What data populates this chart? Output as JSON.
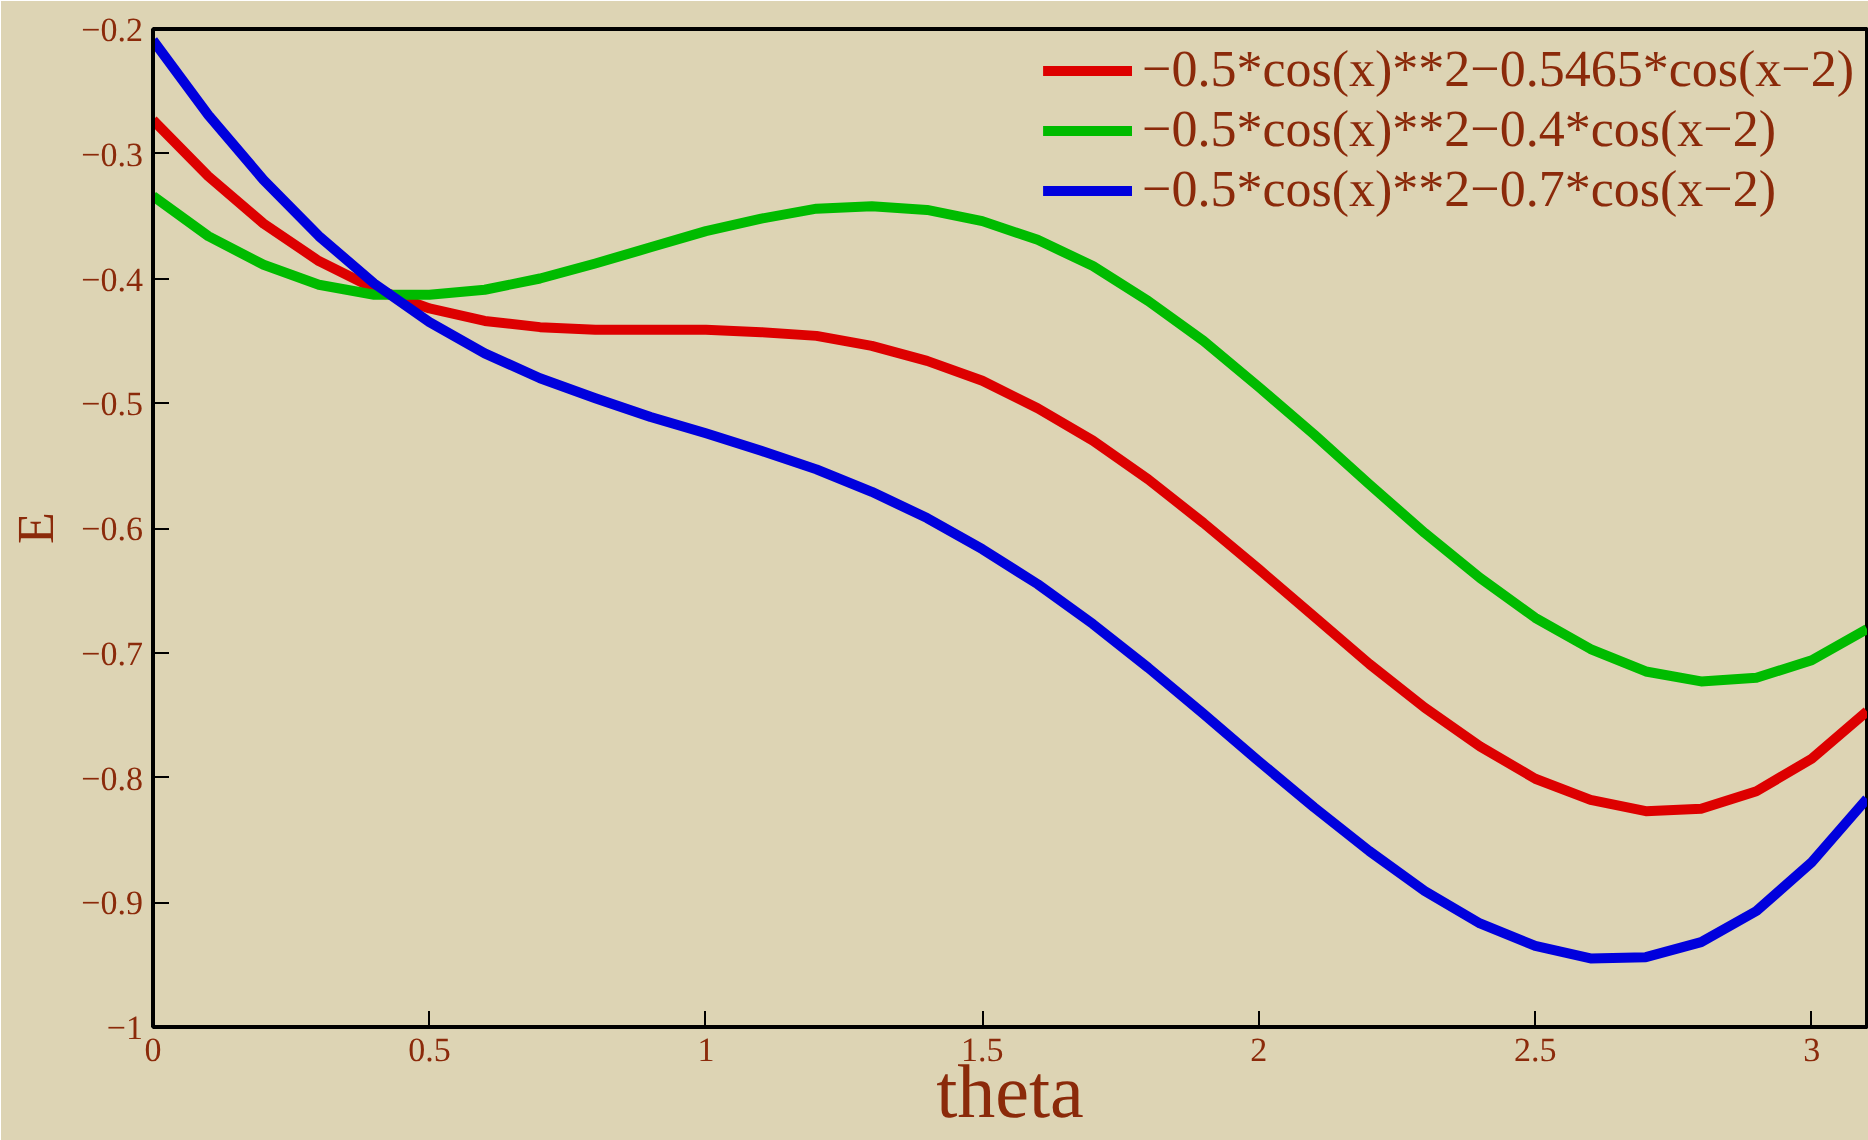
{
  "chart_data": {
    "type": "line",
    "xlabel": "theta",
    "ylabel": "E",
    "x": [
      0,
      0.1,
      0.2,
      0.3,
      0.4,
      0.5,
      0.6,
      0.7,
      0.8,
      0.9,
      1.0,
      1.1,
      1.2,
      1.3,
      1.4,
      1.5,
      1.6,
      1.7,
      1.8,
      1.9,
      2.0,
      2.1,
      2.2,
      2.3,
      2.4,
      2.5,
      2.6,
      2.7,
      2.8,
      2.9,
      3.0,
      3.1
    ],
    "series": [
      {
        "name": "−0.5*cos(x)**2−0.5465*cos(x−2)",
        "color": "#dd0000",
        "values": [
          -0.273,
          -0.318,
          -0.356,
          -0.386,
          -0.408,
          -0.424,
          -0.434,
          -0.439,
          -0.441,
          -0.441,
          -0.441,
          -0.443,
          -0.446,
          -0.454,
          -0.466,
          -0.482,
          -0.504,
          -0.53,
          -0.561,
          -0.596,
          -0.633,
          -0.671,
          -0.709,
          -0.744,
          -0.775,
          -0.801,
          -0.818,
          -0.827,
          -0.825,
          -0.811,
          -0.785,
          -0.747
        ]
      },
      {
        "name": "−0.5*cos(x)**2−0.4*cos(x−2)",
        "color": "#00bb00",
        "values": [
          -0.334,
          -0.366,
          -0.389,
          -0.405,
          -0.413,
          -0.413,
          -0.409,
          -0.4,
          -0.388,
          -0.375,
          -0.362,
          -0.352,
          -0.344,
          -0.342,
          -0.345,
          -0.354,
          -0.369,
          -0.39,
          -0.418,
          -0.45,
          -0.487,
          -0.525,
          -0.565,
          -0.604,
          -0.64,
          -0.672,
          -0.697,
          -0.715,
          -0.723,
          -0.72,
          -0.706,
          -0.681
        ]
      },
      {
        "name": "−0.5*cos(x)**2−0.7*cos(x−2)",
        "color": "#0000dd",
        "values": [
          -0.209,
          -0.269,
          -0.321,
          -0.366,
          -0.404,
          -0.435,
          -0.46,
          -0.48,
          -0.496,
          -0.511,
          -0.524,
          -0.538,
          -0.553,
          -0.571,
          -0.592,
          -0.617,
          -0.645,
          -0.677,
          -0.712,
          -0.749,
          -0.787,
          -0.824,
          -0.859,
          -0.891,
          -0.917,
          -0.935,
          -0.945,
          -0.944,
          -0.932,
          -0.907,
          -0.868,
          -0.817
        ]
      }
    ],
    "xlim": [
      0,
      3.1
    ],
    "ylim": [
      -1,
      -0.2
    ],
    "xticks": [
      0,
      0.5,
      1,
      1.5,
      2,
      2.5,
      3
    ],
    "yticks": [
      {
        "value": -1,
        "label": "−1"
      },
      {
        "value": -0.9,
        "label": "−0.9"
      },
      {
        "value": -0.8,
        "label": "−0.8"
      },
      {
        "value": -0.7,
        "label": "−0.7"
      },
      {
        "value": -0.6,
        "label": "−0.6"
      },
      {
        "value": -0.5,
        "label": "−0.5"
      },
      {
        "value": -0.4,
        "label": "−0.4"
      },
      {
        "value": -0.3,
        "label": "−0.3"
      },
      {
        "value": -0.2,
        "label": "−0.2"
      }
    ],
    "grid": false,
    "legend": "top right",
    "marker": "none",
    "line_style": "solid"
  }
}
